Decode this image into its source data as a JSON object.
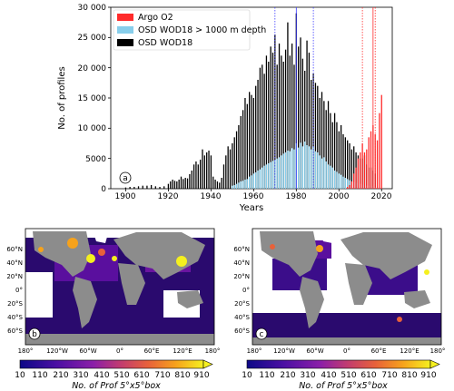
{
  "chart_data": [
    {
      "type": "bar",
      "panel_label": "a",
      "title": "",
      "xlabel": "Years",
      "ylabel": "No. of profiles",
      "xlim": [
        1893,
        2025
      ],
      "ylim": [
        0,
        30000
      ],
      "x_ticks": [
        1900,
        1920,
        1940,
        1960,
        1980,
        2000,
        2020
      ],
      "y_ticks": [
        "0",
        "5000",
        "10 000",
        "15 000",
        "20 000",
        "25 000",
        "30 000"
      ],
      "y_tick_values": [
        0,
        5000,
        10000,
        15000,
        20000,
        25000,
        30000
      ],
      "legend": {
        "placement": "top-left",
        "entries": [
          {
            "label": "Argo O2",
            "color": "#ff2a2a"
          },
          {
            "label": "OSD WOD18 > 1000 m depth",
            "color": "#87ceeb"
          },
          {
            "label": "OSD WOD18",
            "color": "#000000"
          }
        ]
      },
      "vlines": [
        {
          "x": 1970,
          "color": "#3b3bff",
          "style": "dotted"
        },
        {
          "x": 1980,
          "color": "#3b3bff",
          "style": "solid"
        },
        {
          "x": 1988,
          "color": "#3b3bff",
          "style": "dotted"
        },
        {
          "x": 2011,
          "color": "#ff2a2a",
          "style": "dotted"
        },
        {
          "x": 2016,
          "color": "#ff2a2a",
          "style": "solid"
        },
        {
          "x": 2017,
          "color": "#ff2a2a",
          "style": "dotted"
        }
      ],
      "series": [
        {
          "name": "OSD WOD18",
          "color": "#000000",
          "x": [
            1900,
            1902,
            1904,
            1906,
            1908,
            1910,
            1912,
            1914,
            1916,
            1918,
            1920,
            1921,
            1922,
            1923,
            1924,
            1925,
            1926,
            1927,
            1928,
            1929,
            1930,
            1931,
            1932,
            1933,
            1934,
            1935,
            1936,
            1937,
            1938,
            1939,
            1940,
            1941,
            1942,
            1943,
            1944,
            1945,
            1946,
            1947,
            1948,
            1949,
            1950,
            1951,
            1952,
            1953,
            1954,
            1955,
            1956,
            1957,
            1958,
            1959,
            1960,
            1961,
            1962,
            1963,
            1964,
            1965,
            1966,
            1967,
            1968,
            1969,
            1970,
            1971,
            1972,
            1973,
            1974,
            1975,
            1976,
            1977,
            1978,
            1979,
            1980,
            1981,
            1982,
            1983,
            1984,
            1985,
            1986,
            1987,
            1988,
            1989,
            1990,
            1991,
            1992,
            1993,
            1994,
            1995,
            1996,
            1997,
            1998,
            1999,
            2000,
            2001,
            2002,
            2003,
            2004,
            2005,
            2006,
            2007,
            2008,
            2009,
            2010,
            2011,
            2012,
            2013,
            2014,
            2015,
            2016,
            2017
          ],
          "values": [
            200,
            300,
            300,
            400,
            500,
            500,
            600,
            400,
            300,
            400,
            800,
            1200,
            1500,
            1300,
            1200,
            1500,
            2000,
            1600,
            1800,
            1700,
            2400,
            3000,
            4000,
            4500,
            4000,
            4800,
            6500,
            5500,
            6000,
            6300,
            5500,
            2000,
            1500,
            1200,
            1000,
            1800,
            4000,
            5500,
            7000,
            6500,
            7500,
            8500,
            9500,
            10500,
            12000,
            13000,
            15000,
            14000,
            16000,
            15500,
            15000,
            17000,
            18000,
            20000,
            20500,
            19000,
            22000,
            21000,
            23500,
            22500,
            25500,
            20500,
            24000,
            22000,
            21000,
            23000,
            27500,
            22000,
            24000,
            20500,
            29000,
            23500,
            25000,
            21500,
            19500,
            24500,
            22500,
            18000,
            19000,
            17500,
            17000,
            15000,
            16000,
            14500,
            13000,
            14500,
            12500,
            11000,
            12500,
            11000,
            9500,
            10500,
            9000,
            8500,
            8000,
            7500,
            6500,
            7000,
            6000,
            5500,
            5000,
            5000,
            5500,
            4000,
            3500,
            3500,
            3000,
            2500
          ]
        },
        {
          "name": "OSD WOD18 > 1000 m depth",
          "color": "#87ceeb",
          "x": [
            1950,
            1951,
            1952,
            1953,
            1954,
            1955,
            1956,
            1957,
            1958,
            1959,
            1960,
            1961,
            1962,
            1963,
            1964,
            1965,
            1966,
            1967,
            1968,
            1969,
            1970,
            1971,
            1972,
            1973,
            1974,
            1975,
            1976,
            1977,
            1978,
            1979,
            1980,
            1981,
            1982,
            1983,
            1984,
            1985,
            1986,
            1987,
            1988,
            1989,
            1990,
            1991,
            1992,
            1993,
            1994,
            1995,
            1996,
            1997,
            1998,
            1999,
            2000,
            2001,
            2002,
            2003,
            2004,
            2005,
            2006,
            2007,
            2008,
            2009,
            2010,
            2011,
            2012,
            2013,
            2014,
            2015,
            2016,
            2017
          ],
          "values": [
            500,
            600,
            800,
            1000,
            1200,
            1300,
            1500,
            1600,
            2000,
            2200,
            2500,
            2700,
            3000,
            3200,
            3500,
            3800,
            4000,
            4200,
            4400,
            4600,
            4800,
            5000,
            5200,
            5500,
            5800,
            6000,
            6300,
            6200,
            6700,
            6500,
            7500,
            6800,
            7600,
            7000,
            7800,
            7200,
            7000,
            6500,
            7000,
            6200,
            6000,
            5500,
            5000,
            5200,
            4500,
            4000,
            3800,
            3500,
            3000,
            2800,
            2500,
            2300,
            2000,
            1800,
            1600,
            1400,
            1200,
            1100,
            1000,
            900,
            800,
            700,
            600,
            500,
            500,
            400,
            400,
            300
          ]
        },
        {
          "name": "Argo O2",
          "color": "#ff2a2a",
          "x": [
            2004,
            2005,
            2006,
            2007,
            2008,
            2009,
            2010,
            2011,
            2012,
            2013,
            2014,
            2015,
            2016,
            2017,
            2018,
            2019,
            2020
          ],
          "values": [
            300,
            600,
            1200,
            2500,
            3500,
            5000,
            6000,
            7500,
            6000,
            6500,
            8500,
            9500,
            10500,
            9000,
            8000,
            12500,
            15500
          ]
        }
      ]
    },
    {
      "type": "heatmap",
      "panel_label": "b",
      "title": "",
      "x_ticks": [
        "180°",
        "120°W",
        "60°W",
        "0°",
        "60°E",
        "120°E",
        "180°"
      ],
      "y_ticks": [
        "60°N",
        "40°N",
        "20°N",
        "0°",
        "20°S",
        "40°S",
        "60°S"
      ],
      "colorbar": {
        "label": "No. of Prof 5°x5°box",
        "ticks": [
          "10",
          "110",
          "210",
          "310",
          "410",
          "510",
          "610",
          "710",
          "810",
          "910"
        ]
      }
    },
    {
      "type": "heatmap",
      "panel_label": "c",
      "title": "",
      "x_ticks": [
        "180°",
        "120°W",
        "60°W",
        "0°",
        "60°E",
        "120°E",
        "180°"
      ],
      "y_ticks": [
        "60°N",
        "40°N",
        "20°N",
        "0°",
        "20°S",
        "40°S",
        "60°S"
      ],
      "colorbar": {
        "label": "No. of Prof 5°x5°box",
        "ticks": [
          "10",
          "110",
          "210",
          "310",
          "410",
          "510",
          "610",
          "710",
          "810",
          "910"
        ]
      }
    }
  ]
}
